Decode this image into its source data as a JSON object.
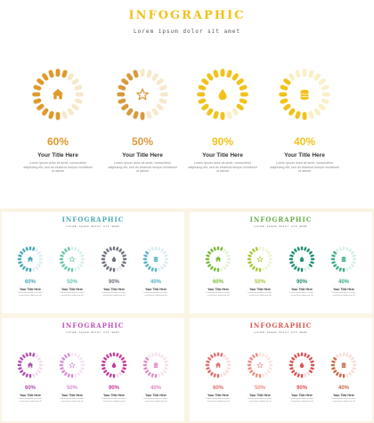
{
  "slides": [
    {
      "id": "slide-main",
      "title": "INFOGRAPHIC",
      "subtitle": "Lorem ipsum dolor sit amet",
      "title_color": "#f2c21a",
      "items": [
        {
          "percent": "60%",
          "level": 0.6,
          "icon": "house-icon",
          "color": "#e0992a",
          "track": "#f6e9cc",
          "title": "Your Title Here",
          "desc": "Lorem ipsum dolor sit amet, consectetur adipiscing elit, sed do eiusmod tempor incididunt ut labore"
        },
        {
          "percent": "50%",
          "level": 0.5,
          "icon": "star-icon",
          "color": "#d99a3e",
          "track": "#f6e9cc",
          "title": "Your Title Here",
          "desc": "Lorem ipsum dolor sit amet, consectetur adipiscing elit, sed do eiusmod tempor incididunt ut labore"
        },
        {
          "percent": "90%",
          "level": 0.9,
          "icon": "drop-icon",
          "color": "#f2c21a",
          "track": "#faf0c8",
          "title": "Your Title Here",
          "desc": "Lorem ipsum dolor sit amet, consectetur adipiscing elit, sed do eiusmod tempor incididunt ut labore"
        },
        {
          "percent": "40%",
          "level": 0.4,
          "icon": "coins-icon",
          "color": "#f2c21a",
          "track": "#faf0c8",
          "title": "Your Title Here",
          "desc": "Lorem ipsum dolor sit amet, consectetur adipiscing elit, sed do eiusmod tempor incididunt ut labore"
        }
      ]
    },
    {
      "id": "slide-teal",
      "title": "INFOGRAPHIC",
      "subtitle": "Lorem ipsum dolor sit amet",
      "title_color": "#4aa8b8",
      "items": [
        {
          "percent": "60%",
          "level": 0.6,
          "icon": "house-icon",
          "color": "#4aa8b8",
          "track": "#dcedf0",
          "title": "Your Title Here",
          "desc": "Lorem ipsum dolor sit amet, consectetur adipiscing elit"
        },
        {
          "percent": "50%",
          "level": 0.5,
          "icon": "star-icon",
          "color": "#6cc7b0",
          "track": "#dcf1eb",
          "title": "Your Title Here",
          "desc": "Lorem ipsum dolor sit amet, consectetur adipiscing elit"
        },
        {
          "percent": "90%",
          "level": 0.9,
          "icon": "drop-icon",
          "color": "#6f7480",
          "track": "#e4e5e8",
          "title": "Your Title Here",
          "desc": "Lorem ipsum dolor sit amet, consectetur adipiscing elit"
        },
        {
          "percent": "40%",
          "level": 0.4,
          "icon": "coins-icon",
          "color": "#5bb3c2",
          "track": "#dcedf0",
          "title": "Your Title Here",
          "desc": "Lorem ipsum dolor sit amet, consectetur adipiscing elit"
        }
      ]
    },
    {
      "id": "slide-green",
      "title": "INFOGRAPHIC",
      "subtitle": "Lorem ipsum dolor sit amet",
      "title_color": "#6aa84f",
      "items": [
        {
          "percent": "60%",
          "level": 0.6,
          "icon": "house-icon",
          "color": "#7dbb3c",
          "track": "#e6f2d8",
          "title": "Your Title Here",
          "desc": "Lorem ipsum dolor sit amet, consectetur adipiscing elit"
        },
        {
          "percent": "50%",
          "level": 0.5,
          "icon": "star-icon",
          "color": "#a8c83a",
          "track": "#eef4d6",
          "title": "Your Title Here",
          "desc": "Lorem ipsum dolor sit amet, consectetur adipiscing elit"
        },
        {
          "percent": "90%",
          "level": 0.9,
          "icon": "drop-icon",
          "color": "#1f8f76",
          "track": "#d4ece6",
          "title": "Your Title Here",
          "desc": "Lorem ipsum dolor sit amet, consectetur adipiscing elit"
        },
        {
          "percent": "40%",
          "level": 0.4,
          "icon": "coins-icon",
          "color": "#3dae84",
          "track": "#d8f0e6",
          "title": "Your Title Here",
          "desc": "Lorem ipsum dolor sit amet, consectetur adipiscing elit"
        }
      ]
    },
    {
      "id": "slide-purple",
      "title": "INFOGRAPHIC",
      "subtitle": "Lorem ipsum dolor sit amet",
      "title_color": "#c04fb8",
      "items": [
        {
          "percent": "60%",
          "level": 0.6,
          "icon": "house-icon",
          "color": "#b04fb0",
          "track": "#f1dcf0",
          "title": "Your Title Here",
          "desc": "Lorem ipsum dolor sit amet, consectetur adipiscing elit"
        },
        {
          "percent": "50%",
          "level": 0.5,
          "icon": "star-icon",
          "color": "#d78fd3",
          "track": "#f6e4f5",
          "title": "Your Title Here",
          "desc": "Lorem ipsum dolor sit amet, consectetur adipiscing elit"
        },
        {
          "percent": "90%",
          "level": 0.9,
          "icon": "drop-icon",
          "color": "#c43a9c",
          "track": "#f3d8ea",
          "title": "Your Title Here",
          "desc": "Lorem ipsum dolor sit amet, consectetur adipiscing elit"
        },
        {
          "percent": "40%",
          "level": 0.4,
          "icon": "coins-icon",
          "color": "#e08cc4",
          "track": "#f7e2ef",
          "title": "Your Title Here",
          "desc": "Lorem ipsum dolor sit amet, consectetur adipiscing elit"
        }
      ]
    },
    {
      "id": "slide-red",
      "title": "INFOGRAPHIC",
      "subtitle": "Lorem ipsum dolor sit amet",
      "title_color": "#d9534f",
      "items": [
        {
          "percent": "60%",
          "level": 0.6,
          "icon": "house-icon",
          "color": "#e07070",
          "track": "#f8dede",
          "title": "Your Title Here",
          "desc": "Lorem ipsum dolor sit amet, consectetur adipiscing elit"
        },
        {
          "percent": "50%",
          "level": 0.5,
          "icon": "star-icon",
          "color": "#ec8e86",
          "track": "#fbe4e2",
          "title": "Your Title Here",
          "desc": "Lorem ipsum dolor sit amet, consectetur adipiscing elit"
        },
        {
          "percent": "90%",
          "level": 0.9,
          "icon": "drop-icon",
          "color": "#d9534f",
          "track": "#f6dad9",
          "title": "Your Title Here",
          "desc": "Lorem ipsum dolor sit amet, consectetur adipiscing elit"
        },
        {
          "percent": "40%",
          "level": 0.4,
          "icon": "coins-icon",
          "color": "#c86a4a",
          "track": "#f4dfd6",
          "title": "Your Title Here",
          "desc": "Lorem ipsum dolor sit amet, consectetur adipiscing elit"
        }
      ]
    }
  ]
}
